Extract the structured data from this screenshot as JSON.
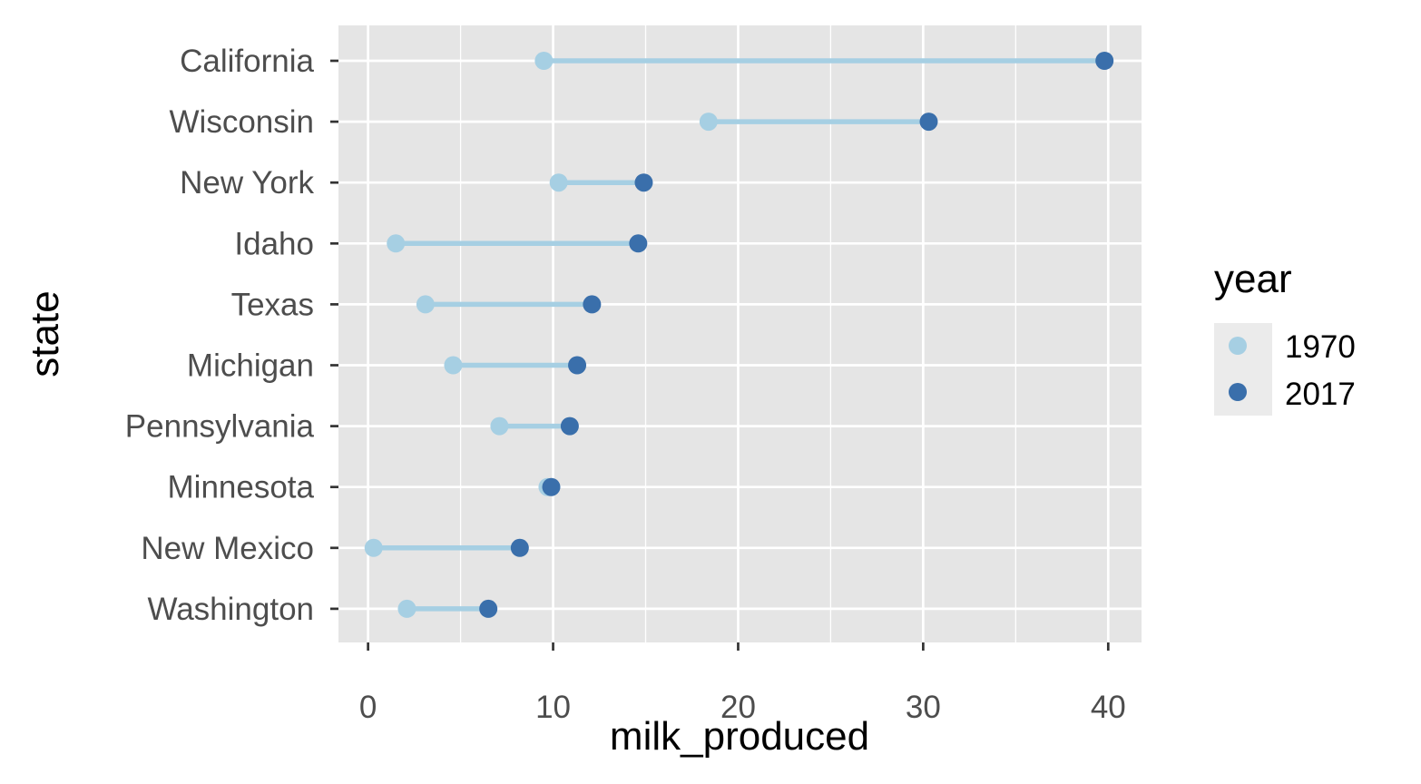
{
  "chart_data": {
    "type": "scatter",
    "subtype": "dumbbell",
    "title": "",
    "xlabel": "milk_produced",
    "ylabel": "state",
    "xlim": [
      -1.6,
      41.8
    ],
    "x_ticks": [
      0,
      10,
      20,
      30,
      40
    ],
    "x_tick_labels": [
      "0",
      "10",
      "20",
      "30",
      "40"
    ],
    "grid": true,
    "legend_title": "year",
    "legend_position": "right",
    "categories": [
      "California",
      "Wisconsin",
      "New York",
      "Idaho",
      "Texas",
      "Michigan",
      "Pennsylvania",
      "Minnesota",
      "New Mexico",
      "Washington"
    ],
    "series": [
      {
        "name": "1970",
        "color": "#a6cfe3",
        "values": [
          9.5,
          18.4,
          10.3,
          1.5,
          3.1,
          4.6,
          7.1,
          9.7,
          0.3,
          2.1
        ]
      },
      {
        "name": "2017",
        "color": "#3a6fab",
        "values": [
          39.8,
          30.3,
          14.9,
          14.6,
          12.1,
          11.3,
          10.9,
          9.9,
          8.2,
          6.5
        ]
      }
    ],
    "segment_color": "#a6cfe3",
    "panel_background": "#e5e5e5",
    "grid_color": "#ffffff"
  }
}
